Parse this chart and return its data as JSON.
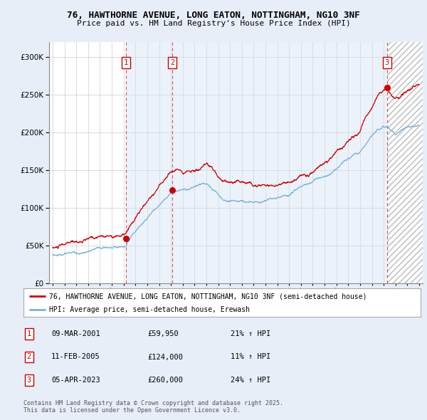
{
  "title_line1": "76, HAWTHORNE AVENUE, LONG EATON, NOTTINGHAM, NG10 3NF",
  "title_line2": "Price paid vs. HM Land Registry's House Price Index (HPI)",
  "legend_line1": "76, HAWTHORNE AVENUE, LONG EATON, NOTTINGHAM, NG10 3NF (semi-detached house)",
  "legend_line2": "HPI: Average price, semi-detached house, Erewash",
  "sale_color": "#cc0000",
  "hpi_color": "#7bb0d8",
  "transactions": [
    {
      "num": 1,
      "x": 2001.18,
      "price": 59950
    },
    {
      "num": 2,
      "x": 2005.12,
      "price": 124000
    },
    {
      "num": 3,
      "x": 2023.27,
      "price": 260000
    }
  ],
  "table_rows": [
    [
      "1",
      "09-MAR-2001",
      "£59,950",
      "21% ↑ HPI"
    ],
    [
      "2",
      "11-FEB-2005",
      "£124,000",
      "11% ↑ HPI"
    ],
    [
      "3",
      "05-APR-2023",
      "£260,000",
      "24% ↑ HPI"
    ]
  ],
  "footnote": "Contains HM Land Registry data © Crown copyright and database right 2025.\nThis data is licensed under the Open Government Licence v3.0.",
  "ylim": [
    0,
    320000
  ],
  "yticks": [
    0,
    50000,
    100000,
    150000,
    200000,
    250000,
    300000
  ],
  "year_start": 1995.0,
  "year_end": 2026.0,
  "background_color": "#e8eef8",
  "plot_bg": "#ffffff",
  "shade_color": "#d4e4f5"
}
